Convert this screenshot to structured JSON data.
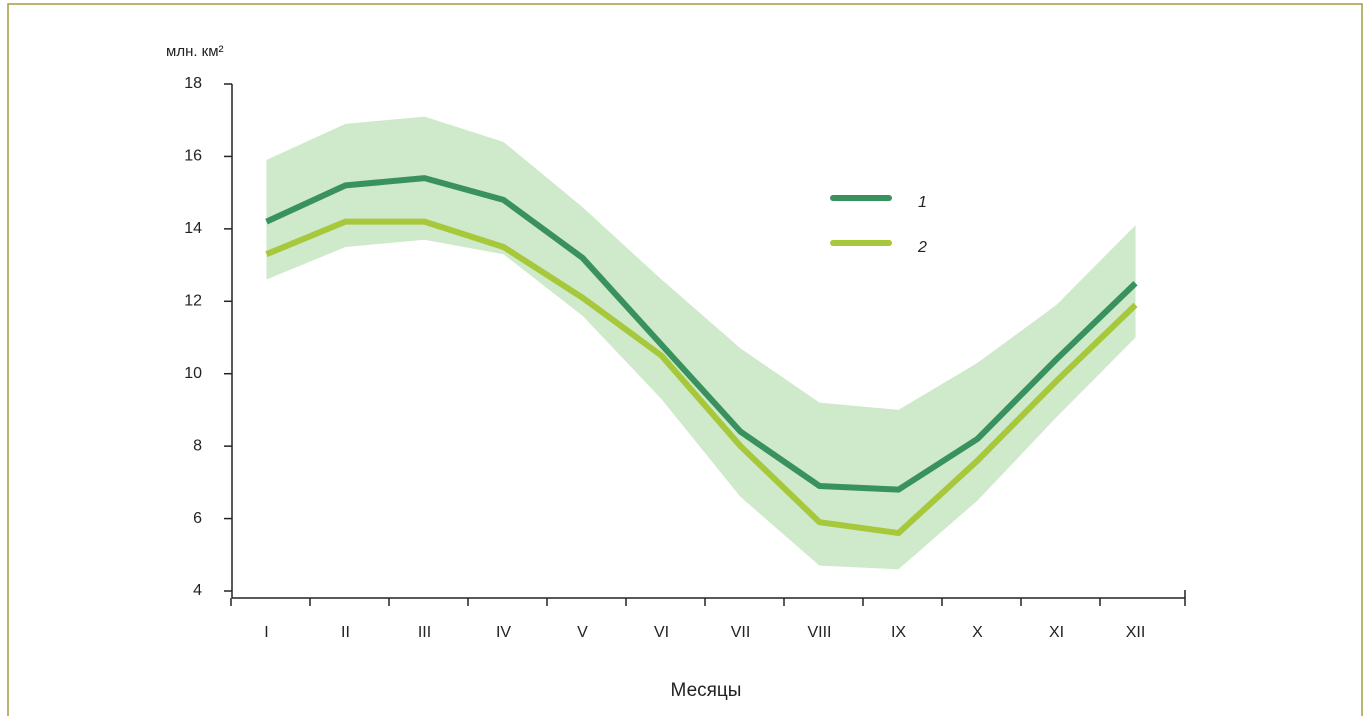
{
  "chart_data": {
    "type": "line",
    "y_label": "млн. км²",
    "x_label": "Месяцы",
    "categories": [
      "I",
      "II",
      "III",
      "IV",
      "V",
      "VI",
      "VII",
      "VIII",
      "IX",
      "X",
      "XI",
      "XII"
    ],
    "series": [
      {
        "name": "1",
        "color": "#3a9160",
        "values": [
          14.2,
          15.2,
          15.4,
          14.8,
          13.2,
          10.8,
          8.4,
          6.9,
          6.8,
          8.2,
          10.4,
          12.5
        ]
      },
      {
        "name": "2",
        "color": "#a6c83a",
        "values": [
          13.3,
          14.2,
          14.2,
          13.5,
          12.1,
          10.5,
          8.0,
          5.9,
          5.6,
          7.6,
          9.8,
          11.9
        ]
      }
    ],
    "band": {
      "color": "#cfe9cb",
      "upper": [
        15.9,
        16.9,
        17.1,
        16.4,
        14.6,
        12.6,
        10.7,
        9.2,
        9.0,
        10.3,
        11.9,
        14.1
      ],
      "lower": [
        12.6,
        13.5,
        13.7,
        13.3,
        11.6,
        9.3,
        6.6,
        4.7,
        4.6,
        6.5,
        8.8,
        11.0
      ]
    },
    "ylim": [
      4,
      18
    ],
    "yticks": [
      4,
      6,
      8,
      10,
      12,
      14,
      16,
      18
    ],
    "grid": false
  }
}
